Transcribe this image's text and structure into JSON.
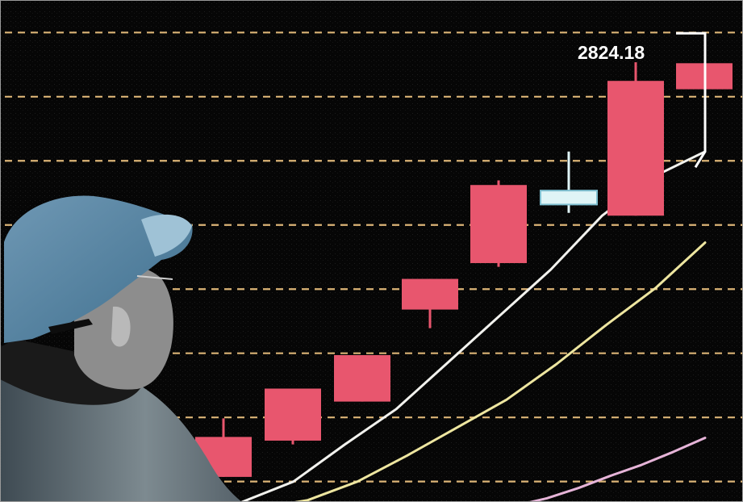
{
  "chart_data": {
    "type": "candlestick",
    "title": "",
    "xlabel": "",
    "ylabel": "",
    "grid": true,
    "ylim": [
      2320,
      2860
    ],
    "gridlines": [
      2342,
      2411,
      2480,
      2549,
      2618,
      2687,
      2756,
      2825
    ],
    "candles": [
      {
        "open": 2347,
        "close": 2390,
        "high": 2410,
        "low": 2347,
        "color": "#e8566e"
      },
      {
        "open": 2386,
        "close": 2442,
        "high": 2442,
        "low": 2382,
        "color": "#e8566e"
      },
      {
        "open": 2428,
        "close": 2478,
        "high": 2478,
        "low": 2428,
        "color": "#e8566e"
      },
      {
        "open": 2527,
        "close": 2560,
        "high": 2560,
        "low": 2507,
        "color": "#e8566e"
      },
      {
        "open": 2577,
        "close": 2661,
        "high": 2666,
        "low": 2573,
        "color": "#e8566e"
      },
      {
        "open": 2640,
        "close": 2655,
        "high": 2697,
        "low": 2631,
        "color": "#dff4f6"
      },
      {
        "open": 2628,
        "close": 2773,
        "high": 2793,
        "low": 2628,
        "color": "#e8566e"
      },
      {
        "open": 2792,
        "close": 2764,
        "high": 2792,
        "low": 2764,
        "color": "#e8566e"
      }
    ],
    "annotation": {
      "text": "2824.18",
      "value": 2824.18,
      "color": "#ffffff"
    },
    "moving_averages": [
      {
        "color": "#f2f2ee",
        "values": [
          2320,
          2342,
          2382,
          2420,
          2470,
          2520,
          2570,
          2628,
          2670,
          2697
        ]
      },
      {
        "color": "#eee6a0",
        "values": [
          2313,
          2322,
          2342,
          2370,
          2400,
          2430,
          2468,
          2510,
          2550,
          2599
        ]
      },
      {
        "color": "#e6b4d8",
        "values": [
          2302,
          2308,
          2316,
          2324,
          2335,
          2348,
          2360,
          2374,
          2389
        ]
      }
    ],
    "colors": {
      "grid": "#f3c783",
      "bullish": "#e8566e",
      "highlight": "#dff4f6"
    }
  },
  "photo": {
    "subject": "man-in-cap"
  }
}
